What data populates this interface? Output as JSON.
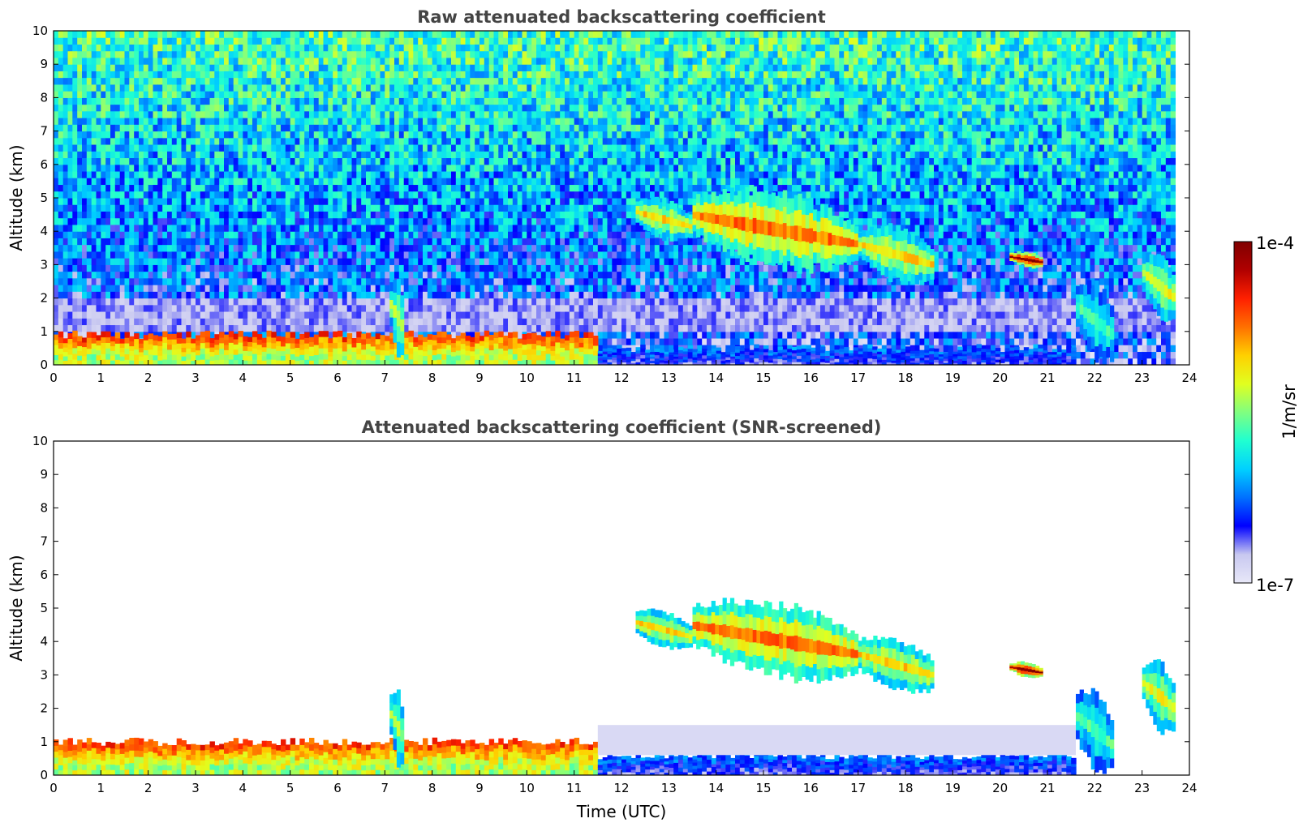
{
  "chart_data": [
    {
      "type": "heatmap",
      "title": "Raw attenuated backscattering coefficient",
      "xlabel": "",
      "ylabel": "Altitude (km)",
      "xlim": [
        0,
        24
      ],
      "ylim": [
        0,
        10
      ],
      "xticks": [
        "0",
        "1",
        "2",
        "3",
        "4",
        "5",
        "6",
        "7",
        "8",
        "9",
        "10",
        "11",
        "12",
        "13",
        "14",
        "15",
        "16",
        "17",
        "18",
        "19",
        "20",
        "21",
        "22",
        "23",
        "24"
      ],
      "yticks": [
        "0",
        "1",
        "2",
        "3",
        "4",
        "5",
        "6",
        "7",
        "8",
        "9",
        "10"
      ],
      "noise": "high",
      "features": [
        {
          "kind": "boundary-layer",
          "t_start": 0,
          "t_end": 11.5,
          "z_top": 0.9,
          "level": 0.8
        },
        {
          "kind": "boundary-layer",
          "t_start": 11.5,
          "t_end": 21.6,
          "z_top": 0.5,
          "level": 0.25
        },
        {
          "kind": "cloud",
          "t_start": 12.3,
          "t_end": 13.5,
          "z_low": 3.7,
          "z_high": 5.0,
          "level": 0.65
        },
        {
          "kind": "cloud",
          "t_start": 13.5,
          "t_end": 17.0,
          "z_low": 2.8,
          "z_high": 5.3,
          "level": 0.75
        },
        {
          "kind": "cloud",
          "t_start": 17.0,
          "t_end": 18.6,
          "z_low": 2.4,
          "z_high": 4.2,
          "level": 0.65
        },
        {
          "kind": "cloud",
          "t_start": 20.2,
          "t_end": 20.9,
          "z_low": 2.9,
          "z_high": 3.4,
          "level": 0.97
        },
        {
          "kind": "cloud",
          "t_start": 21.6,
          "t_end": 22.4,
          "z_low": 0.0,
          "z_high": 2.6,
          "level": 0.45
        },
        {
          "kind": "cloud",
          "t_start": 23.0,
          "t_end": 23.7,
          "z_low": 1.2,
          "z_high": 3.5,
          "level": 0.6
        },
        {
          "kind": "cloud",
          "t_start": 7.1,
          "t_end": 7.4,
          "z_low": 0.2,
          "z_high": 2.6,
          "level": 0.55
        }
      ]
    },
    {
      "type": "heatmap",
      "title": "Attenuated backscattering coefficient (SNR-screened)",
      "xlabel": "Time (UTC)",
      "ylabel": "Altitude (km)",
      "xlim": [
        0,
        24
      ],
      "ylim": [
        0,
        10
      ],
      "xticks": [
        "0",
        "1",
        "2",
        "3",
        "4",
        "5",
        "6",
        "7",
        "8",
        "9",
        "10",
        "11",
        "12",
        "13",
        "14",
        "15",
        "16",
        "17",
        "18",
        "19",
        "20",
        "21",
        "22",
        "23",
        "24"
      ],
      "yticks": [
        "0",
        "1",
        "2",
        "3",
        "4",
        "5",
        "6",
        "7",
        "8",
        "9",
        "10"
      ],
      "noise": "screened",
      "features": [
        {
          "kind": "boundary-layer",
          "t_start": 0,
          "t_end": 11.5,
          "z_top": 1.0,
          "level": 0.8
        },
        {
          "kind": "boundary-layer",
          "t_start": 11.5,
          "t_end": 21.6,
          "z_top": 0.6,
          "level": 0.25
        },
        {
          "kind": "haze",
          "t_start": 11.5,
          "t_end": 21.6,
          "z_low": 0.6,
          "z_high": 1.5,
          "level": 0.05
        },
        {
          "kind": "cloud",
          "t_start": 12.3,
          "t_end": 13.5,
          "z_low": 3.7,
          "z_high": 5.0,
          "level": 0.65
        },
        {
          "kind": "cloud",
          "t_start": 13.5,
          "t_end": 17.0,
          "z_low": 2.8,
          "z_high": 5.3,
          "level": 0.75
        },
        {
          "kind": "cloud",
          "t_start": 17.0,
          "t_end": 18.6,
          "z_low": 2.4,
          "z_high": 4.2,
          "level": 0.65
        },
        {
          "kind": "cloud",
          "t_start": 20.2,
          "t_end": 20.9,
          "z_low": 2.9,
          "z_high": 3.4,
          "level": 0.97
        },
        {
          "kind": "cloud",
          "t_start": 21.6,
          "t_end": 22.4,
          "z_low": 0.0,
          "z_high": 2.6,
          "level": 0.45
        },
        {
          "kind": "cloud",
          "t_start": 23.0,
          "t_end": 23.7,
          "z_low": 1.2,
          "z_high": 3.5,
          "level": 0.6
        },
        {
          "kind": "cloud",
          "t_start": 7.1,
          "t_end": 7.4,
          "z_low": 0.2,
          "z_high": 2.6,
          "level": 0.55
        }
      ]
    }
  ],
  "colorbar": {
    "label": "1/m/sr",
    "max_label": "1e-4",
    "min_label": "1e-7",
    "min": 1e-07,
    "max": 0.0001,
    "scale": "log",
    "colormap": "jet",
    "colors": [
      "#e8e8f8",
      "#c8c8f0",
      "#0000ff",
      "#0070ff",
      "#00d0ff",
      "#20ffd0",
      "#80ff80",
      "#e0ff20",
      "#ffd000",
      "#ff7000",
      "#ff2000",
      "#b00000",
      "#800000"
    ]
  }
}
